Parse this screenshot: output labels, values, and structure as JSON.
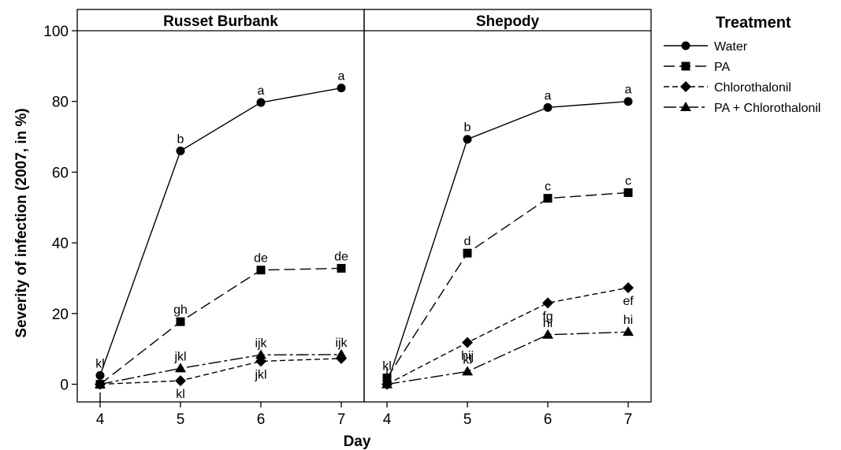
{
  "chart_data": {
    "type": "line",
    "xlabel": "Day",
    "ylabel": "Severity of infection (2007, in %)",
    "ylim": [
      -5,
      100
    ],
    "yticks": [
      0,
      20,
      40,
      60,
      80,
      100
    ],
    "xticks": [
      4,
      5,
      6,
      7
    ],
    "legend": {
      "title": "Treatment",
      "placement": "right",
      "entries": [
        "Water",
        "PA",
        "Chlorothalonil",
        "PA + Chlorothalonil"
      ]
    },
    "panels": [
      {
        "title": "Russet Burbank",
        "series": [
          {
            "name": "Water",
            "marker": "circle",
            "dash": "solid",
            "x": [
              4,
              5,
              6,
              7
            ],
            "values": [
              2.5,
              66,
              79.7,
              83.8
            ],
            "labels": [
              "kl",
              "b",
              "a",
              "a"
            ]
          },
          {
            "name": "PA",
            "marker": "square",
            "dash": "long",
            "x": [
              4,
              5,
              6,
              7
            ],
            "values": [
              0,
              17.7,
              32.3,
              32.8
            ],
            "labels": [
              "",
              "gh",
              "de",
              "de"
            ]
          },
          {
            "name": "Chlorothalonil",
            "marker": "diamond",
            "dash": "short",
            "x": [
              4,
              5,
              6,
              7
            ],
            "values": [
              0,
              1,
              6.5,
              7.3
            ],
            "labels": [
              "l",
              "kl",
              "jkl",
              ""
            ]
          },
          {
            "name": "PA + Chlorothalonil",
            "marker": "triangle",
            "dash": "dashdot",
            "x": [
              4,
              5,
              6,
              7
            ],
            "values": [
              0,
              4.5,
              8.3,
              8.4
            ],
            "labels": [
              "",
              "jkl",
              "ijk",
              "ijk"
            ]
          }
        ]
      },
      {
        "title": "Shepody",
        "series": [
          {
            "name": "Water",
            "marker": "circle",
            "dash": "solid",
            "x": [
              4,
              5,
              6,
              7
            ],
            "values": [
              0,
              69.3,
              78.3,
              80
            ],
            "labels": [
              "",
              "b",
              "a",
              "a"
            ]
          },
          {
            "name": "PA",
            "marker": "square",
            "dash": "long",
            "x": [
              4,
              5,
              6,
              7
            ],
            "values": [
              1.8,
              37.1,
              52.6,
              54.2
            ],
            "labels": [
              "kl",
              "d",
              "c",
              "c"
            ]
          },
          {
            "name": "Chlorothalonil",
            "marker": "diamond",
            "dash": "short",
            "x": [
              4,
              5,
              6,
              7
            ],
            "values": [
              0,
              11.8,
              23,
              27.3
            ],
            "labels": [
              "",
              "hij",
              "fg",
              "ef"
            ]
          },
          {
            "name": "PA + Chlorothalonil",
            "marker": "triangle",
            "dash": "dashdot",
            "x": [
              4,
              5,
              6,
              7
            ],
            "values": [
              0,
              3.6,
              14,
              14.8
            ],
            "labels": [
              "l",
              "kl",
              "hi",
              "hi"
            ]
          }
        ]
      }
    ]
  }
}
